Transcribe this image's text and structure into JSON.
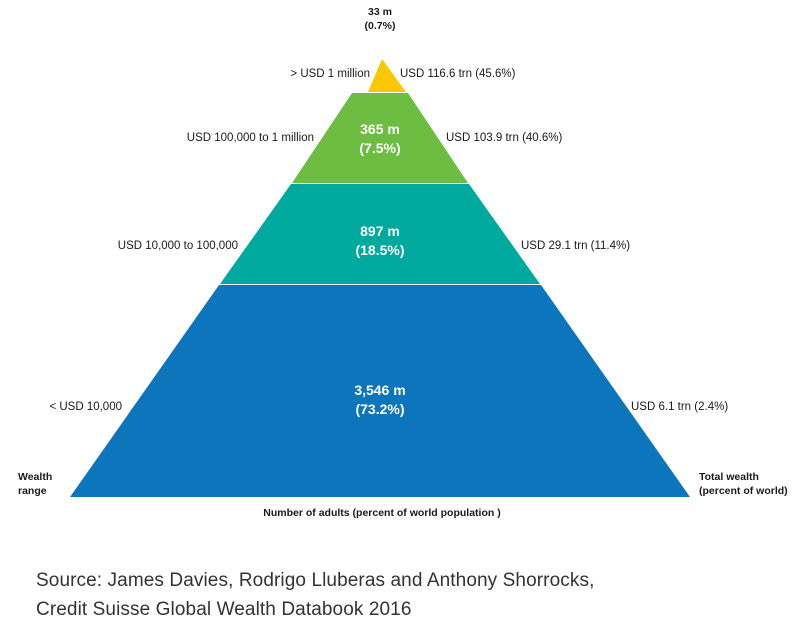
{
  "tiers": [
    {
      "range": "> USD 1 million",
      "adults": "33 m",
      "share_of_adults": "(0.7%)",
      "wealth": "USD 116.6 trn (45.6%)",
      "color": "#f9c800"
    },
    {
      "range": "USD 100,000 to 1 million",
      "adults": "365 m",
      "share_of_adults": "(7.5%)",
      "wealth": "USD 103.9 trn (40.6%)",
      "color": "#6dbd43"
    },
    {
      "range": "USD 10,000 to 100,000",
      "adults": "897 m",
      "share_of_adults": "(18.5%)",
      "wealth": "USD 29.1 trn (11.4%)",
      "color": "#00a99d"
    },
    {
      "range": "< USD 10,000",
      "adults": "3,546 m",
      "share_of_adults": "(73.2%)",
      "wealth": "USD 6.1 trn (2.4%)",
      "color": "#0d75bc"
    }
  ],
  "left_axis": {
    "line1": "Wealth",
    "line2": "range"
  },
  "right_axis": {
    "line1": "Total wealth",
    "line2": "(percent of world)"
  },
  "x_label": "Number of adults (percent of world population )",
  "source": {
    "line1": "Source: James Davies, Rodrigo Lluberas and Anthony Shorrocks,",
    "line2": "Credit Suisse Global Wealth Databook 2016"
  }
}
